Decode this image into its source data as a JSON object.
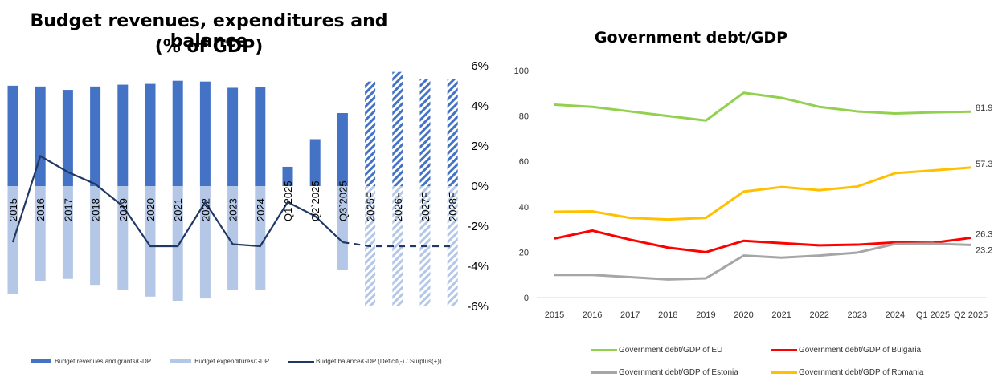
{
  "chart_data": [
    {
      "type": "bar",
      "title": "Budget revenues, expenditures and balance",
      "subtitle": "(% of GDP)",
      "categories": [
        "2015",
        "2016",
        "2017",
        "2018",
        "2019",
        "2020",
        "2021",
        "2022",
        "2023",
        "2024",
        "Q1`2025",
        "Q2`2025",
        "Q3`2025",
        "2025F",
        "2026F",
        "2027F",
        "2028F"
      ],
      "series": [
        {
          "name": "Budget revenues and grants/GDP",
          "color": "#4472C4",
          "values": [
            38.5,
            38.2,
            36.9,
            38.2,
            38.9,
            39.2,
            40.4,
            40.1,
            37.7,
            38.0,
            7.4,
            18.0,
            28.0,
            40.1,
            43.8,
            41.2,
            41.1
          ]
        },
        {
          "name": "Budget expenditures/GDP",
          "color": "#B4C7E7",
          "values": [
            41.4,
            36.3,
            35.6,
            37.9,
            40.0,
            42.4,
            44.0,
            43.1,
            39.8,
            40.0,
            null,
            null,
            32.0,
            null,
            null,
            null,
            null
          ]
        },
        {
          "name": "Budget balance/GDP (Deficit(-) / Surplus(+))",
          "color": "#1F3864",
          "type": "line",
          "axis": "right",
          "values": [
            -2.8,
            1.5,
            0.7,
            0.1,
            -1.0,
            -3.0,
            -3.0,
            -0.8,
            -2.9,
            -3.0,
            -0.8,
            -1.5,
            -2.8,
            -3.0,
            -3.0,
            -3.0,
            -3.0
          ]
        }
      ],
      "forecast_from_index": 13,
      "hatched_categories": [
        "2025F",
        "2026F",
        "2027F",
        "2028F"
      ],
      "right_axis": {
        "ticks": [
          "6%",
          "4%",
          "2%",
          "0%",
          "-2%",
          "-4%",
          "-6%"
        ],
        "ylim": [
          -6,
          6
        ]
      },
      "legend": [
        "Budget revenues and grants/GDP",
        "Budget expenditures/GDP",
        "Budget balance/GDP (Deficit(-) / Surplus(+))"
      ],
      "legend_position": "bottom"
    },
    {
      "type": "line",
      "title": "Government debt/GDP",
      "categories": [
        "2015",
        "2016",
        "2017",
        "2018",
        "2019",
        "2020",
        "2021",
        "2022",
        "2023",
        "2024",
        "Q1 2025",
        "Q2 2025"
      ],
      "ylim": [
        0,
        100
      ],
      "yticks": [
        "100",
        "80",
        "60",
        "40",
        "20",
        "0"
      ],
      "series": [
        {
          "name": "Government debt/GDP of EU",
          "color": "#92D050",
          "values": [
            85.0,
            84.0,
            82.0,
            80.0,
            78.0,
            90.2,
            88.0,
            84.0,
            82.0,
            81.1,
            81.6,
            81.9
          ],
          "end_label": "81.9"
        },
        {
          "name": "Government debt/GDP of Bulgaria",
          "color": "#FF0000",
          "values": [
            26.0,
            29.5,
            25.5,
            22.0,
            20.0,
            25.0,
            24.0,
            23.0,
            23.3,
            24.3,
            24.1,
            26.3
          ],
          "end_label": "26.3"
        },
        {
          "name": "Government debt/GDP of Estonia",
          "color": "#A6A6A6",
          "values": [
            10.0,
            10.0,
            9.0,
            8.0,
            8.5,
            18.5,
            17.6,
            18.5,
            19.8,
            23.6,
            23.7,
            23.2
          ],
          "end_label": "23.2"
        },
        {
          "name": "Government debt/GDP of Romania",
          "color": "#FFC000",
          "values": [
            37.8,
            38.0,
            35.1,
            34.4,
            35.1,
            46.7,
            48.7,
            47.3,
            48.9,
            54.8,
            56.0,
            57.3
          ],
          "end_label": "57.3"
        }
      ],
      "legend_position": "bottom"
    }
  ]
}
